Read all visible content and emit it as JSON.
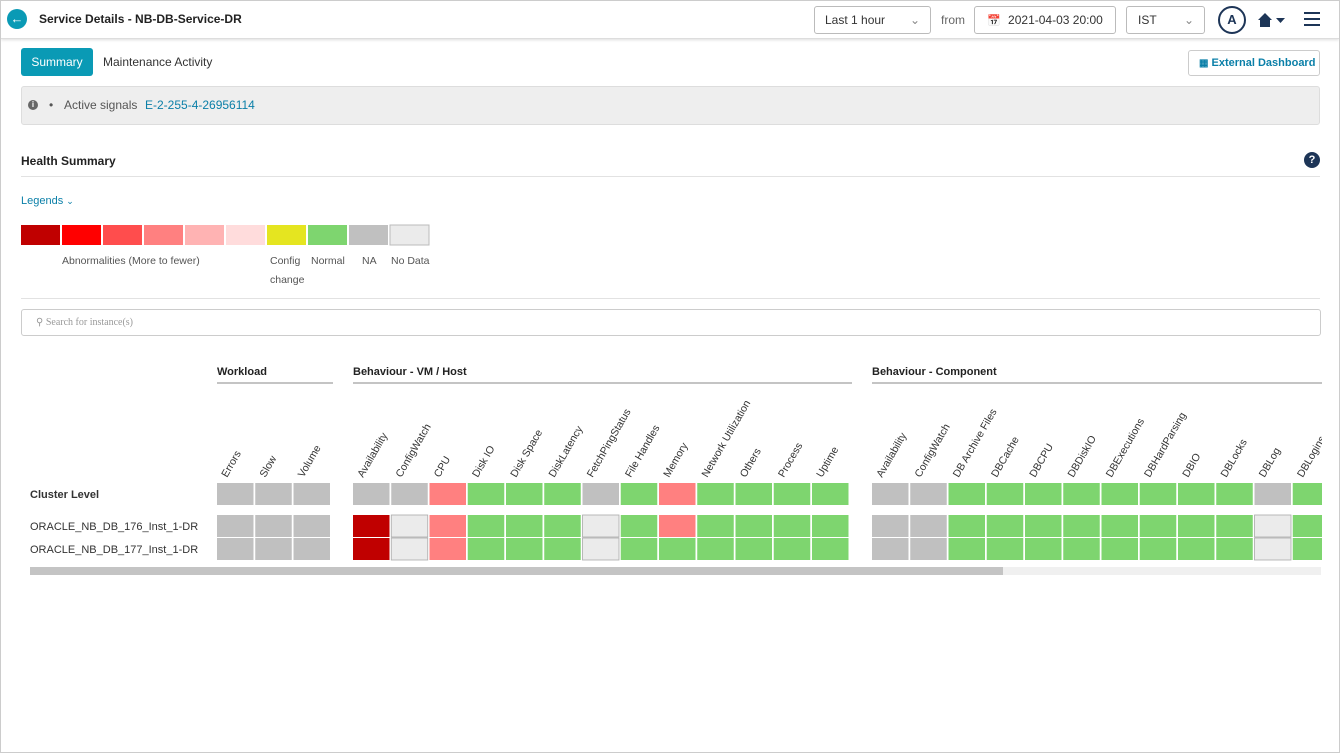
{
  "header": {
    "title": "Service Details - NB-DB-Service-DR",
    "time_range": "Last 1 hour",
    "from_label": "from",
    "from_date": "2021-04-03 20:00",
    "timezone": "IST",
    "avatar": "A"
  },
  "tabs": [
    "Summary",
    "Maintenance Activity"
  ],
  "external_dashboard": "External Dashboard",
  "signals": {
    "label": "Active signals",
    "id": "E-2-255-4-26956114"
  },
  "health_summary": {
    "title": "Health Summary",
    "legends_toggle": "Legends",
    "legend": {
      "colors": [
        "#c00000",
        "#ff0000",
        "#ff4d4d",
        "#ff8080",
        "#ffb3b3",
        "#ffdcdc",
        "#e5e520",
        "#7ed56f",
        "#c0c0c0",
        "#ebebeb"
      ],
      "labels": [
        "Abnormalities (More to fewer)",
        "Config change",
        "Normal",
        "NA",
        "No Data"
      ]
    }
  },
  "search_placeholder": "Search for instance(s)",
  "grid": {
    "groups": [
      {
        "name": "Workload",
        "columns": [
          "Errors",
          "Slow",
          "Volume"
        ]
      },
      {
        "name": "Behaviour - VM / Host",
        "columns": [
          "Availability",
          "ConfigWatch",
          "CPU",
          "Disk IO",
          "Disk Space",
          "DiskLatency",
          "FetchPingStatus",
          "File Handles",
          "Memory",
          "Network Utilization",
          "Others",
          "Process",
          "Uptime"
        ]
      },
      {
        "name": "Behaviour - Component",
        "columns": [
          "Availability",
          "ConfigWatch",
          "DB Archive Files",
          "DBCache",
          "DBCPU",
          "DBDiskIO",
          "DBExecutions",
          "DBHardParsing",
          "DBIO",
          "DBLocks",
          "DBLog",
          "DBLogins"
        ]
      }
    ],
    "rows": [
      {
        "name": "Cluster Level",
        "cells": [
          [
            "#c0c0c0",
            "#c0c0c0",
            "#c0c0c0"
          ],
          [
            "#c0c0c0",
            "#c0c0c0",
            "#ff8080",
            "#7ed56f",
            "#7ed56f",
            "#7ed56f",
            "#c0c0c0",
            "#7ed56f",
            "#ff8080",
            "#7ed56f",
            "#7ed56f",
            "#7ed56f",
            "#7ed56f"
          ],
          [
            "#c0c0c0",
            "#c0c0c0",
            "#7ed56f",
            "#7ed56f",
            "#7ed56f",
            "#7ed56f",
            "#7ed56f",
            "#7ed56f",
            "#7ed56f",
            "#7ed56f",
            "#c0c0c0",
            "#7ed56f"
          ]
        ]
      },
      {
        "name": "ORACLE_NB_DB_176_Inst_1-DR",
        "cells": [
          [
            "#c0c0c0",
            "#c0c0c0",
            "#c0c0c0"
          ],
          [
            "#c00000",
            "#ebebeb",
            "#ff8080",
            "#7ed56f",
            "#7ed56f",
            "#7ed56f",
            "#ebebeb",
            "#7ed56f",
            "#ff8080",
            "#7ed56f",
            "#7ed56f",
            "#7ed56f",
            "#7ed56f"
          ],
          [
            "#c0c0c0",
            "#c0c0c0",
            "#7ed56f",
            "#7ed56f",
            "#7ed56f",
            "#7ed56f",
            "#7ed56f",
            "#7ed56f",
            "#7ed56f",
            "#7ed56f",
            "#ebebeb",
            "#7ed56f"
          ]
        ]
      },
      {
        "name": "ORACLE_NB_DB_177_Inst_1-DR",
        "cells": [
          [
            "#c0c0c0",
            "#c0c0c0",
            "#c0c0c0"
          ],
          [
            "#c00000",
            "#ebebeb",
            "#ff8080",
            "#7ed56f",
            "#7ed56f",
            "#7ed56f",
            "#ebebeb",
            "#7ed56f",
            "#7ed56f",
            "#7ed56f",
            "#7ed56f",
            "#7ed56f",
            "#7ed56f"
          ],
          [
            "#c0c0c0",
            "#c0c0c0",
            "#7ed56f",
            "#7ed56f",
            "#7ed56f",
            "#7ed56f",
            "#7ed56f",
            "#7ed56f",
            "#7ed56f",
            "#7ed56f",
            "#ebebeb",
            "#7ed56f"
          ]
        ]
      }
    ]
  }
}
